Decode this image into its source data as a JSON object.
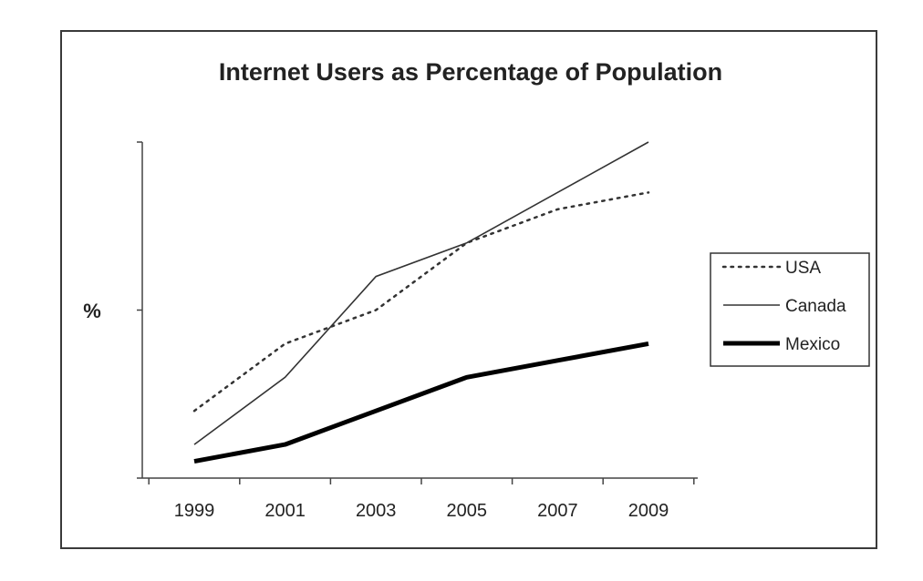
{
  "chart_data": {
    "type": "line",
    "title": "Internet Users as Percentage of Population",
    "xlabel": "",
    "ylabel": "%",
    "x": [
      "1999",
      "2001",
      "2003",
      "2005",
      "2007",
      "2009"
    ],
    "ylim": [
      0,
      100
    ],
    "y_ticks_labeled": false,
    "grid": false,
    "legend_position": "right",
    "series": [
      {
        "name": "USA",
        "style": "dotted",
        "color": "#333333",
        "values": [
          20,
          40,
          50,
          70,
          80,
          85
        ]
      },
      {
        "name": "Canada",
        "style": "solid-thin",
        "color": "#333333",
        "values": [
          10,
          30,
          60,
          70,
          85,
          100
        ]
      },
      {
        "name": "Mexico",
        "style": "solid-thick",
        "color": "#000000",
        "values": [
          5,
          10,
          20,
          30,
          35,
          40
        ]
      }
    ]
  }
}
